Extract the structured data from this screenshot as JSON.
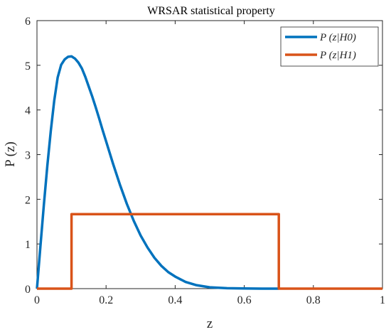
{
  "chart_data": {
    "type": "line",
    "title": "WRSAR statistical property",
    "xlabel": "z",
    "ylabel": "P (z)",
    "xlim": [
      0,
      1
    ],
    "ylim": [
      0,
      6
    ],
    "x_ticks": [
      "0",
      "0.2",
      "0.4",
      "0.6",
      "0.8",
      "1"
    ],
    "y_ticks": [
      "0",
      "1",
      "2",
      "3",
      "4",
      "5",
      "6"
    ],
    "grid": false,
    "legend_position": "top-right",
    "series": [
      {
        "name": "P (z|H0)",
        "color": "#0072BD",
        "x": [
          0,
          0.01,
          0.02,
          0.03,
          0.04,
          0.05,
          0.06,
          0.07,
          0.08,
          0.09,
          0.1,
          0.11,
          0.12,
          0.13,
          0.14,
          0.15,
          0.16,
          0.17,
          0.18,
          0.19,
          0.2,
          0.22,
          0.24,
          0.26,
          0.28,
          0.3,
          0.32,
          0.34,
          0.36,
          0.38,
          0.4,
          0.43,
          0.46,
          0.5,
          0.55,
          0.6,
          0.65,
          0.7
        ],
        "y": [
          0,
          0.95,
          1.88,
          2.75,
          3.53,
          4.21,
          4.73,
          5.01,
          5.13,
          5.19,
          5.2,
          5.15,
          5.06,
          4.93,
          4.74,
          4.52,
          4.3,
          4.06,
          3.81,
          3.55,
          3.3,
          2.8,
          2.33,
          1.9,
          1.52,
          1.19,
          0.92,
          0.69,
          0.51,
          0.37,
          0.27,
          0.15,
          0.08,
          0.03,
          0.01,
          0.003,
          0.001,
          0
        ]
      },
      {
        "name": "P (z|H1)",
        "color": "#D95319",
        "x": [
          0,
          0.1,
          0.1,
          0.7,
          0.7,
          1.0
        ],
        "y": [
          0,
          0,
          1.667,
          1.667,
          0,
          0
        ]
      }
    ]
  }
}
